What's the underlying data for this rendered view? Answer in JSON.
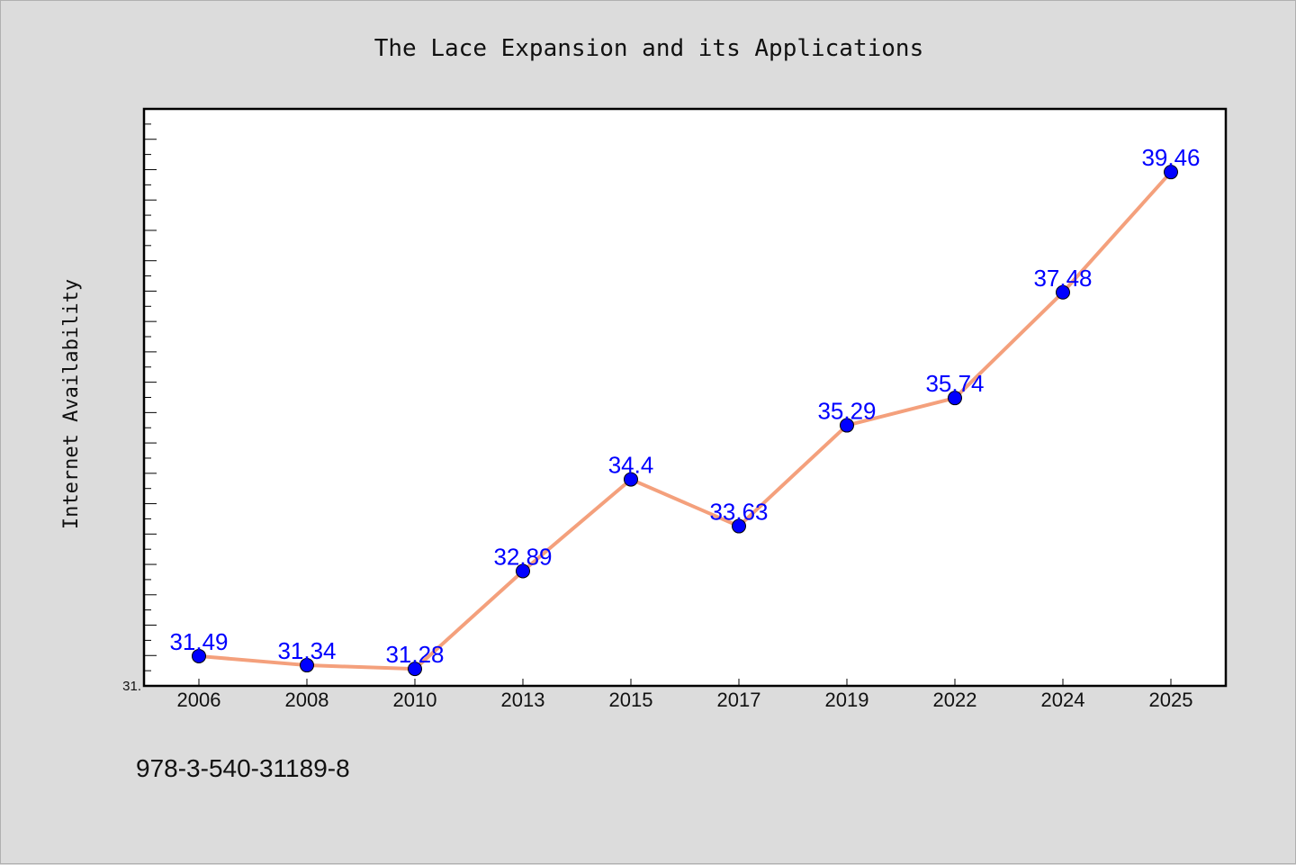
{
  "chart_data": {
    "type": "line",
    "title": "The Lace Expansion and its Applications",
    "xlabel": "",
    "ylabel": "Internet Availability",
    "categories": [
      "2006",
      "2008",
      "2010",
      "2013",
      "2015",
      "2017",
      "2019",
      "2022",
      "2024",
      "2025"
    ],
    "series": [
      {
        "values": [
          31.49,
          31.34,
          31.28,
          32.89,
          34.4,
          33.63,
          35.29,
          35.74,
          37.48,
          39.46
        ]
      }
    ],
    "data_labels": [
      "31.49",
      "31.34",
      "31.28",
      "32.89",
      "34.4",
      "33.63",
      "35.29",
      "35.74",
      "37.48",
      "39.46"
    ],
    "ylim": [
      31.0,
      40.5
    ],
    "y_tick_label": "31.",
    "grid": false,
    "line_color": "#f4a07c",
    "marker_color": "#0000ff",
    "label_color": "#0000ff"
  },
  "footnote": "978-3-540-31189-8"
}
